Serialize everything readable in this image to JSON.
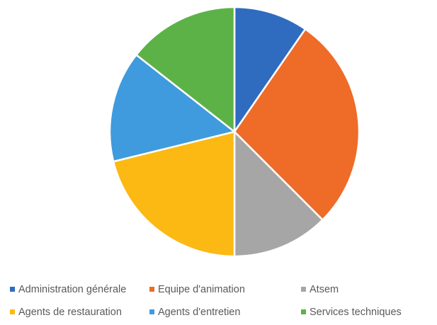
{
  "chart_data": {
    "type": "pie",
    "title": "",
    "categories": [
      "Administration générale",
      "Equipe d'animation",
      "Atsem",
      "Agents de restauration",
      "Agents d'entretien",
      "Services techniques"
    ],
    "values": [
      10,
      29,
      13,
      22,
      15,
      15
    ],
    "colors": [
      "#2f6cc0",
      "#ee6b28",
      "#a6a6a6",
      "#fcb913",
      "#3f9bdd",
      "#5db247"
    ],
    "start_angle_deg": 0,
    "direction": "clockwise",
    "legend_position": "bottom"
  }
}
